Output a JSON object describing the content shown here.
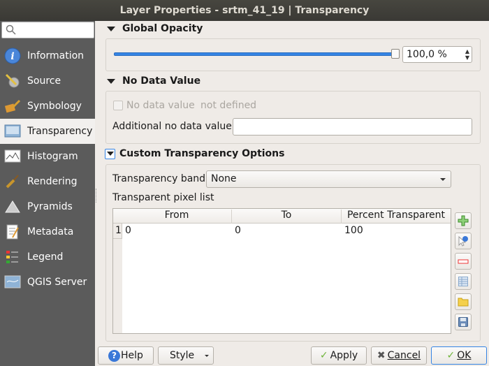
{
  "window": {
    "title": "Layer Properties - srtm_41_19 | Transparency"
  },
  "sidebar": {
    "search_placeholder": "",
    "items": [
      {
        "label": "Information",
        "icon": "info-icon"
      },
      {
        "label": "Source",
        "icon": "source-icon"
      },
      {
        "label": "Symbology",
        "icon": "symbology-icon"
      },
      {
        "label": "Transparency",
        "icon": "transparency-icon",
        "selected": true
      },
      {
        "label": "Histogram",
        "icon": "histogram-icon"
      },
      {
        "label": "Rendering",
        "icon": "rendering-icon"
      },
      {
        "label": "Pyramids",
        "icon": "pyramids-icon"
      },
      {
        "label": "Metadata",
        "icon": "metadata-icon"
      },
      {
        "label": "Legend",
        "icon": "legend-icon"
      },
      {
        "label": "QGIS Server",
        "icon": "server-icon"
      }
    ]
  },
  "global_opacity": {
    "title": "Global Opacity",
    "value_text": "100,0 %",
    "percent": 100
  },
  "no_data": {
    "title": "No Data Value",
    "checkbox_label": "No data value",
    "checkbox_checked": false,
    "status": "not defined",
    "additional_label": "Additional no data value",
    "additional_value": ""
  },
  "custom": {
    "title": "Custom Transparency Options",
    "checked": true,
    "band_label": "Transparency band",
    "band_value": "None",
    "pixel_list_label": "Transparent pixel list",
    "columns": [
      "From",
      "To",
      "Percent Transparent"
    ],
    "rows": [
      {
        "index": "1",
        "from": "0",
        "to": "0",
        "percent": "100"
      }
    ]
  },
  "footer": {
    "help": "Help",
    "style": "Style",
    "apply": "Apply",
    "cancel": "Cancel",
    "ok": "OK"
  },
  "colors": {
    "accent": "#3584e4",
    "sidebar": "#5b5b5b"
  }
}
